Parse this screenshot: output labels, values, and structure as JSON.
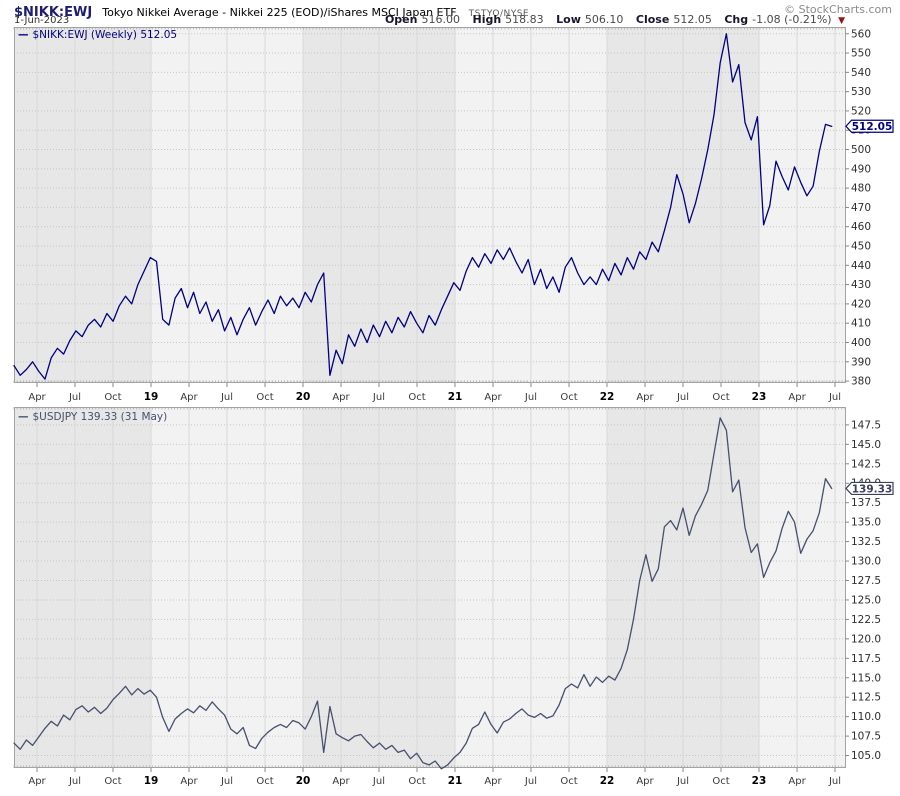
{
  "header": {
    "symbol": "$NIKK:EWJ",
    "title": "Tokyo Nikkei Average - Nikkei 225 (EOD)/iShares MSCI Japan ETF",
    "exchange": "TSTYO/NYSE",
    "copyright": "© StockCharts.com",
    "date": "1-Jun-2023",
    "quote": {
      "open_label": "Open",
      "open": "516.00",
      "high_label": "High",
      "high": "518.83",
      "low_label": "Low",
      "low": "506.10",
      "close_label": "Close",
      "close": "512.05",
      "chg_label": "Chg",
      "chg": "-1.08 (-0.21%)",
      "chg_direction": "down"
    }
  },
  "colors": {
    "nikk_line": "#000080",
    "usdjpy_line": "#44506e",
    "band_dark": "#e7e7e7",
    "band_light": "#f2f2f2",
    "frame": "#a3a3a3",
    "grid_h": "#c6c6c6",
    "grid_v": "#d8d8d8",
    "tick": "#9a9a9a",
    "month_label": "#3a3a3a",
    "year_label": "#000000",
    "yaxis_label": "#2e2e2e",
    "negative_red": "#9c1212"
  },
  "x_axis": {
    "labels": [
      {
        "pos": 0.0277,
        "label": "Apr"
      },
      {
        "pos": 0.0734,
        "label": "Jul"
      },
      {
        "pos": 0.1191,
        "label": "Oct"
      },
      {
        "pos": 0.1649,
        "label": "19",
        "year": true
      },
      {
        "pos": 0.2106,
        "label": "Apr"
      },
      {
        "pos": 0.2563,
        "label": "Jul"
      },
      {
        "pos": 0.3021,
        "label": "Oct"
      },
      {
        "pos": 0.3478,
        "label": "20",
        "year": true
      },
      {
        "pos": 0.3935,
        "label": "Apr"
      },
      {
        "pos": 0.4392,
        "label": "Jul"
      },
      {
        "pos": 0.485,
        "label": "Oct"
      },
      {
        "pos": 0.5307,
        "label": "21",
        "year": true
      },
      {
        "pos": 0.5764,
        "label": "Apr"
      },
      {
        "pos": 0.6221,
        "label": "Jul"
      },
      {
        "pos": 0.6679,
        "label": "Oct"
      },
      {
        "pos": 0.7136,
        "label": "22",
        "year": true
      },
      {
        "pos": 0.7593,
        "label": "Apr"
      },
      {
        "pos": 0.8051,
        "label": "Jul"
      },
      {
        "pos": 0.8508,
        "label": "Oct"
      },
      {
        "pos": 0.8965,
        "label": "23",
        "year": true
      },
      {
        "pos": 0.9423,
        "label": "Apr"
      },
      {
        "pos": 0.988,
        "label": "Jul"
      }
    ],
    "range_note": "weekly data, Apr 2018 - Jun 2023"
  },
  "chart_data": [
    {
      "type": "line",
      "name": "NIKK-EWJ-ratio",
      "legend": "$NIKK:EWJ (Weekly) 512.05",
      "line_color": "#000080",
      "box_color": "#000080",
      "last_value": 512.05,
      "last_label": "512.05",
      "ylim": [
        379,
        563.5
      ],
      "yticks": [
        380,
        390,
        400,
        410,
        420,
        430,
        440,
        450,
        460,
        470,
        480,
        490,
        500,
        510,
        520,
        530,
        540,
        550,
        560
      ],
      "decimals": 0,
      "x_span": [
        0,
        0.984
      ],
      "values": [
        388,
        383,
        386,
        390,
        385,
        381,
        392,
        397,
        394,
        401,
        406,
        403,
        409,
        412,
        408,
        415,
        411,
        419,
        424,
        420,
        430,
        437,
        444,
        442,
        412,
        409,
        423,
        428,
        418,
        426,
        415,
        421,
        411,
        417,
        406,
        413,
        404,
        412,
        418,
        409,
        416,
        422,
        415,
        424,
        419,
        423,
        418,
        426,
        421,
        430,
        436,
        383,
        396,
        389,
        404,
        398,
        407,
        400,
        409,
        403,
        411,
        405,
        413,
        408,
        416,
        410,
        405,
        414,
        409,
        417,
        424,
        431,
        427,
        437,
        444,
        439,
        446,
        441,
        448,
        443,
        449,
        442,
        436,
        443,
        430,
        438,
        428,
        434,
        426,
        439,
        444,
        436,
        430,
        434,
        430,
        438,
        432,
        441,
        435,
        444,
        438,
        447,
        443,
        452,
        447,
        458,
        470,
        487,
        477,
        462,
        472,
        485,
        500,
        518,
        545,
        560,
        535,
        544,
        514,
        505,
        517,
        461,
        471,
        494,
        486,
        479,
        491,
        483,
        476,
        481,
        499,
        513,
        512
      ]
    },
    {
      "type": "line",
      "name": "USDJPY",
      "legend": "$USDJPY 139.33 (31 May)",
      "line_color": "#44506e",
      "box_color": "#39415c",
      "last_value": 139.33,
      "last_label": "139.33",
      "ylim": [
        103.4,
        149.8
      ],
      "yticks": [
        105.0,
        107.5,
        110.0,
        112.5,
        115.0,
        117.5,
        120.0,
        122.5,
        125.0,
        127.5,
        130.0,
        132.5,
        135.0,
        137.5,
        140.0,
        142.5,
        145.0,
        147.5
      ],
      "decimals": 1,
      "x_span": [
        0,
        0.984
      ],
      "values": [
        106.6,
        105.8,
        107.0,
        106.3,
        107.4,
        108.5,
        109.4,
        108.8,
        110.2,
        109.6,
        110.9,
        111.4,
        110.6,
        111.2,
        110.4,
        111.1,
        112.2,
        113.0,
        113.9,
        112.8,
        113.6,
        112.9,
        113.4,
        112.5,
        109.9,
        108.1,
        109.7,
        110.4,
        111.0,
        110.5,
        111.4,
        110.8,
        111.9,
        111.0,
        110.2,
        108.4,
        107.8,
        108.6,
        106.3,
        105.9,
        107.2,
        108.0,
        108.6,
        109.0,
        108.6,
        109.5,
        109.2,
        108.4,
        110.0,
        112.0,
        105.4,
        111.3,
        107.8,
        107.3,
        106.9,
        107.5,
        107.7,
        106.8,
        106.0,
        106.6,
        105.8,
        106.3,
        105.4,
        105.7,
        104.6,
        105.3,
        104.1,
        103.8,
        104.3,
        103.3,
        103.8,
        104.7,
        105.4,
        106.6,
        108.5,
        109.0,
        110.6,
        109.0,
        107.9,
        109.3,
        109.7,
        110.4,
        111.0,
        110.2,
        109.9,
        110.4,
        109.8,
        110.1,
        111.5,
        113.6,
        114.2,
        113.7,
        115.4,
        113.9,
        115.1,
        114.4,
        115.2,
        114.7,
        116.2,
        118.6,
        122.5,
        127.5,
        130.8,
        127.4,
        129.0,
        134.4,
        135.2,
        134.0,
        136.8,
        133.3,
        135.8,
        137.3,
        139.1,
        143.8,
        148.4,
        146.8,
        138.9,
        140.4,
        134.3,
        131.1,
        132.2,
        127.9,
        129.8,
        131.3,
        134.2,
        136.4,
        135.0,
        131.0,
        132.8,
        133.9,
        136.2,
        140.6,
        139.33
      ]
    }
  ]
}
